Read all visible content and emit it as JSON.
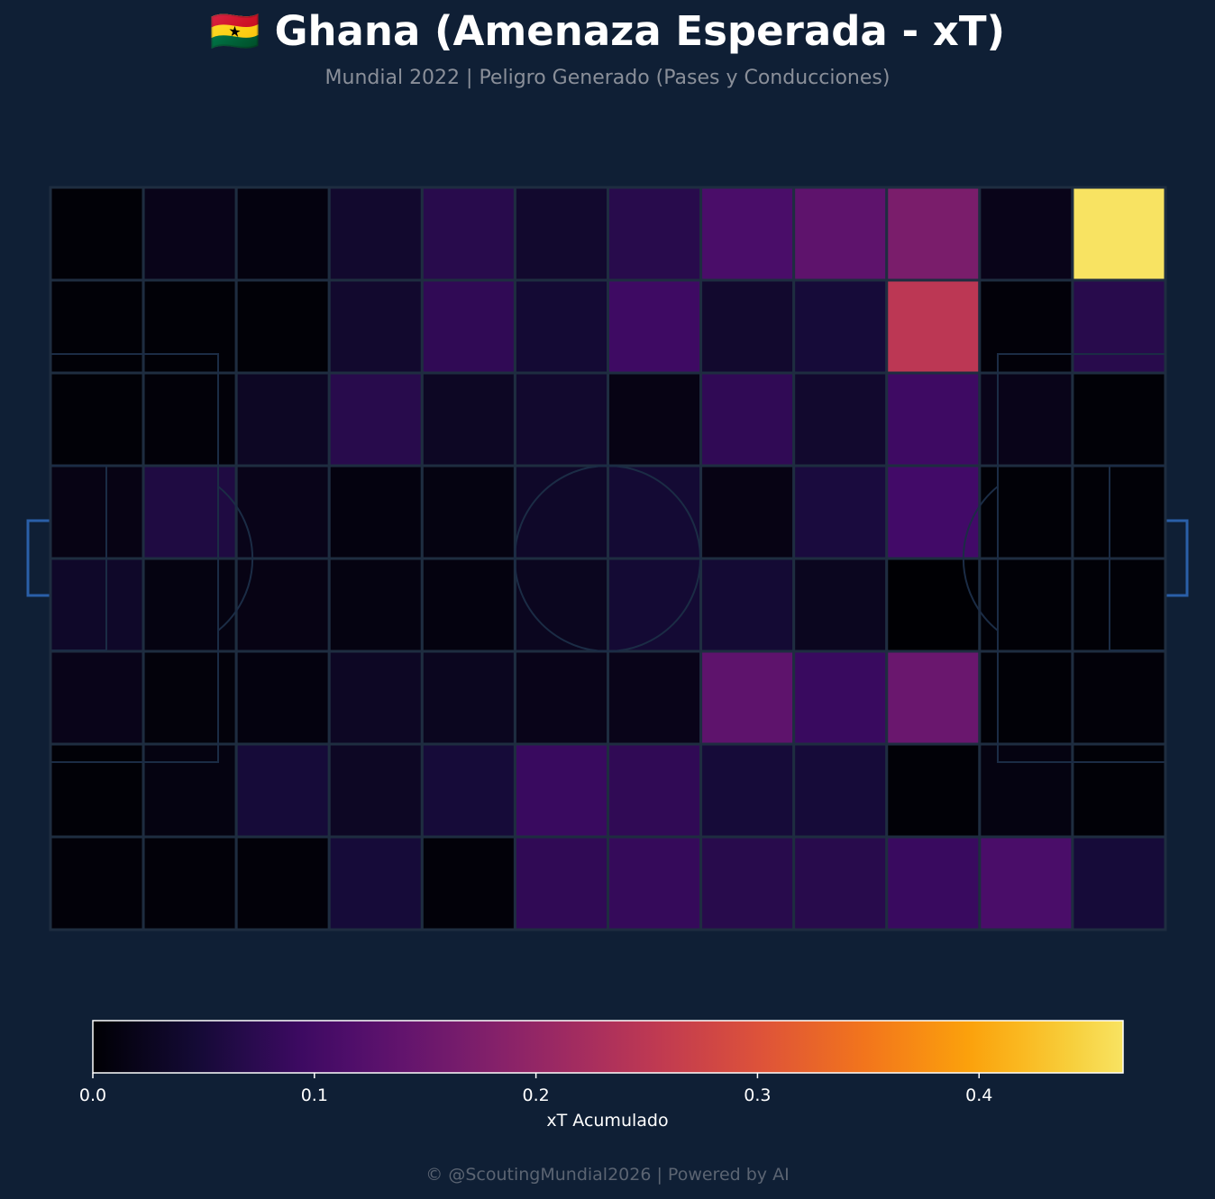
{
  "title": "🇬🇭 Ghana (Amenaza Esperada - xT)",
  "subtitle": "Mundial 2022 | Peligro Generado (Pases y Conducciones)",
  "footer": "© @ScoutingMundial2026 | Powered by AI",
  "colors": {
    "background": "#0f1f35",
    "cell_border": "#1e2d40",
    "pitch_lines": "#1b2c45",
    "goal": "#2a5fa8"
  },
  "chart_data": {
    "type": "heatmap",
    "colormap": "inferno",
    "grid": {
      "columns": 12,
      "rows": 8
    },
    "values": [
      [
        0.003,
        0.02,
        0.01,
        0.04,
        0.07,
        0.04,
        0.07,
        0.11,
        0.135,
        0.17,
        0.02,
        0.465
      ],
      [
        0.003,
        0.003,
        0.003,
        0.04,
        0.08,
        0.045,
        0.095,
        0.04,
        0.05,
        0.25,
        0.005,
        0.07
      ],
      [
        0.003,
        0.005,
        0.03,
        0.07,
        0.03,
        0.04,
        0.015,
        0.08,
        0.04,
        0.095,
        0.02,
        0.003
      ],
      [
        0.015,
        0.06,
        0.02,
        0.01,
        0.012,
        0.035,
        0.045,
        0.015,
        0.055,
        0.1,
        0.003,
        0.003
      ],
      [
        0.035,
        0.012,
        0.015,
        0.012,
        0.01,
        0.025,
        0.045,
        0.045,
        0.025,
        0.0,
        0.003,
        0.003
      ],
      [
        0.02,
        0.007,
        0.01,
        0.03,
        0.025,
        0.02,
        0.02,
        0.135,
        0.09,
        0.15,
        0.003,
        0.005
      ],
      [
        0.003,
        0.012,
        0.05,
        0.03,
        0.05,
        0.09,
        0.08,
        0.05,
        0.05,
        0.003,
        0.012,
        0.003
      ],
      [
        0.005,
        0.005,
        0.005,
        0.05,
        0.005,
        0.08,
        0.085,
        0.07,
        0.07,
        0.09,
        0.11,
        0.05
      ]
    ],
    "colorbar": {
      "label": "xT Acumulado",
      "range": [
        0,
        0.465
      ],
      "ticks": [
        0.0,
        0.1,
        0.2,
        0.3,
        0.4
      ],
      "tick_labels": [
        "0.0",
        "0.1",
        "0.2",
        "0.3",
        "0.4"
      ]
    }
  }
}
